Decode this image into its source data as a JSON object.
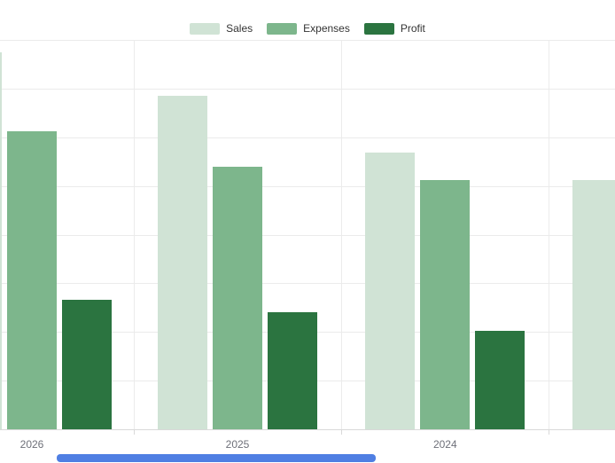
{
  "legend": {
    "items": [
      {
        "label": "Sales",
        "color": "#d0e3d5"
      },
      {
        "label": "Expenses",
        "color": "#7db68c"
      },
      {
        "label": "Profit",
        "color": "#2b7440"
      }
    ]
  },
  "chart_data": {
    "type": "bar",
    "title": "",
    "categories": [
      "2026",
      "2025",
      "2024",
      ""
    ],
    "series": [
      {
        "name": "Sales",
        "color": "#d0e3d5",
        "values": [
          7740,
          6850,
          5690,
          5120
        ]
      },
      {
        "name": "Expenses",
        "color": "#7db68c",
        "values": [
          6120,
          5390,
          5120,
          null
        ]
      },
      {
        "name": "Profit",
        "color": "#2b7440",
        "values": [
          2660,
          2410,
          2020,
          null
        ]
      }
    ],
    "ylim": [
      0,
      8000
    ],
    "grid": true,
    "legend_position": "top-center",
    "note": "Y-axis labels are cropped out of view; values are estimated in units where one gridline interval = 1000. Chart is horizontally cropped: the 2026 Sales bar is clipped at the left edge and a fourth category group (label not visible) is clipped at the right edge."
  },
  "x_axis": {
    "visible_labels": [
      "2026",
      "2025",
      "2024"
    ],
    "label_color": "#6e7079"
  },
  "style_colors": {
    "background": "#ffffff",
    "gridline": "#ebebeb",
    "axis_line": "#d9d9d9",
    "tick": "#d9d9d9",
    "legend_text": "#333333"
  },
  "scrollbar": {
    "color": "#4f7fe3"
  }
}
